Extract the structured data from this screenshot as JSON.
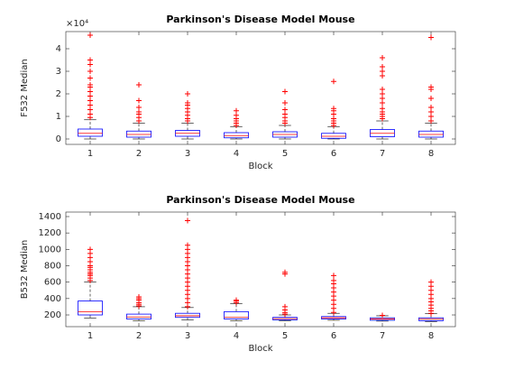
{
  "chart_data": [
    {
      "type": "box",
      "title": "Parkinson's Disease Model Mouse",
      "xlabel": "Block",
      "ylabel": "F532 Median",
      "y_exponent_label": "×10⁴",
      "categories": [
        "1",
        "2",
        "3",
        "4",
        "5",
        "6",
        "7",
        "8"
      ],
      "box_color": "#0000ff",
      "median_color": "#ff0000",
      "whisker_color": "#000000",
      "outlier_color": "#ff0000",
      "ylim": [
        -2400,
        47600
      ],
      "yticks": [
        {
          "value": 0,
          "label": "0"
        },
        {
          "value": 10000,
          "label": "1"
        },
        {
          "value": 20000,
          "label": "2"
        },
        {
          "value": 30000,
          "label": "3"
        },
        {
          "value": 40000,
          "label": "4"
        }
      ],
      "boxes": [
        {
          "whisker_low": 0,
          "q1": 1200,
          "median": 2500,
          "q3": 4400,
          "whisker_high": 8500,
          "outliers": [
            9500,
            11000,
            13000,
            15000,
            17000,
            19000,
            21000,
            23000,
            24000,
            27000,
            30000,
            33000,
            35000,
            46000
          ]
        },
        {
          "whisker_low": 0,
          "q1": 800,
          "median": 2000,
          "q3": 3500,
          "whisker_high": 7000,
          "outliers": [
            8000,
            9500,
            11000,
            12000,
            14000,
            17000,
            24000
          ]
        },
        {
          "whisker_low": 0,
          "q1": 1200,
          "median": 2500,
          "q3": 3800,
          "whisker_high": 7000,
          "outliers": [
            8000,
            9000,
            10500,
            12000,
            13500,
            15000,
            16000,
            20000
          ]
        },
        {
          "whisker_low": 0,
          "q1": 500,
          "median": 1500,
          "q3": 2800,
          "whisker_high": 5500,
          "outliers": [
            6000,
            7000,
            8000,
            9000,
            10500,
            12500
          ]
        },
        {
          "whisker_low": 0,
          "q1": 800,
          "median": 2000,
          "q3": 3200,
          "whisker_high": 6000,
          "outliers": [
            7000,
            8000,
            9500,
            11000,
            13000,
            16000,
            21000
          ]
        },
        {
          "whisker_low": 0,
          "q1": 300,
          "median": 1200,
          "q3": 2500,
          "whisker_high": 5500,
          "outliers": [
            6000,
            7000,
            8000,
            9000,
            11000,
            12500,
            13500,
            25500
          ]
        },
        {
          "whisker_low": 0,
          "q1": 1000,
          "median": 2500,
          "q3": 4200,
          "whisker_high": 8000,
          "outliers": [
            9000,
            10000,
            11000,
            12000,
            13500,
            16000,
            18000,
            20000,
            22000,
            28000,
            30000,
            32000,
            36000
          ]
        },
        {
          "whisker_low": 0,
          "q1": 800,
          "median": 2000,
          "q3": 3500,
          "whisker_high": 7000,
          "outliers": [
            8000,
            10000,
            12000,
            14000,
            18000,
            22000,
            23000,
            45000
          ]
        }
      ]
    },
    {
      "type": "box",
      "title": "Parkinson's Disease Model Mouse",
      "xlabel": "Block",
      "ylabel": "B532 Median",
      "categories": [
        "1",
        "2",
        "3",
        "4",
        "5",
        "6",
        "7",
        "8"
      ],
      "box_color": "#0000ff",
      "median_color": "#ff0000",
      "whisker_color": "#000000",
      "outlier_color": "#ff0000",
      "ylim": [
        57,
        1455
      ],
      "yticks": [
        200,
        400,
        600,
        800,
        1000,
        1200,
        1400
      ],
      "boxes": [
        {
          "whisker_low": 160,
          "q1": 200,
          "median": 240,
          "q3": 370,
          "whisker_high": 600,
          "outliers": [
            620,
            650,
            680,
            700,
            720,
            750,
            780,
            800,
            850,
            900,
            950,
            1000
          ]
        },
        {
          "whisker_low": 130,
          "q1": 150,
          "median": 175,
          "q3": 210,
          "whisker_high": 300,
          "outliers": [
            310,
            330,
            350,
            380,
            400,
            420
          ]
        },
        {
          "whisker_low": 140,
          "q1": 170,
          "median": 190,
          "q3": 220,
          "whisker_high": 290,
          "outliers": [
            300,
            350,
            400,
            450,
            500,
            550,
            600,
            650,
            700,
            750,
            800,
            850,
            900,
            950,
            1000,
            1050,
            1350
          ]
        },
        {
          "whisker_low": 130,
          "q1": 150,
          "median": 170,
          "q3": 240,
          "whisker_high": 340,
          "outliers": [
            350,
            370,
            380
          ]
        },
        {
          "whisker_low": 130,
          "q1": 140,
          "median": 155,
          "q3": 170,
          "whisker_high": 200,
          "outliers": [
            210,
            230,
            260,
            300,
            700,
            720
          ]
        },
        {
          "whisker_low": 135,
          "q1": 150,
          "median": 165,
          "q3": 180,
          "whisker_high": 220,
          "outliers": [
            230,
            280,
            330,
            380,
            430,
            480,
            530,
            580,
            620,
            680
          ]
        },
        {
          "whisker_low": 125,
          "q1": 135,
          "median": 150,
          "q3": 165,
          "whisker_high": 190,
          "outliers": [
            195
          ]
        },
        {
          "whisker_low": 120,
          "q1": 130,
          "median": 148,
          "q3": 165,
          "whisker_high": 215,
          "outliers": [
            220,
            250,
            280,
            320,
            360,
            400,
            450,
            500,
            550,
            600
          ]
        }
      ]
    }
  ]
}
